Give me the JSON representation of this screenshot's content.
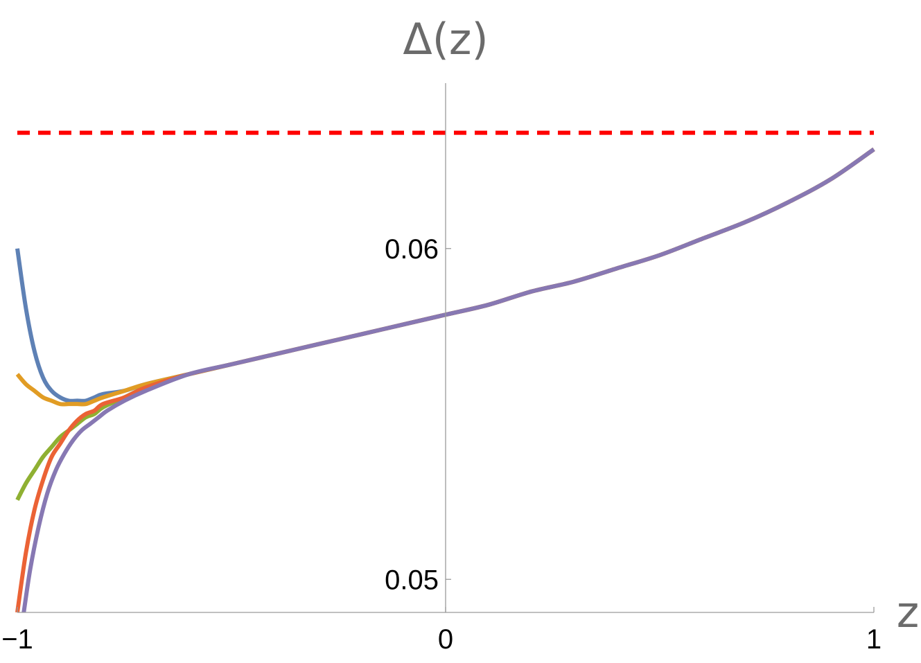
{
  "chart_data": {
    "type": "line",
    "title": "",
    "xlabel": "z",
    "ylabel": "Δ(z)",
    "xlim": [
      -1,
      1
    ],
    "ylim": [
      0.049,
      0.065
    ],
    "x_ticks": [
      "−1",
      "0",
      "1"
    ],
    "x_tick_values": [
      -1,
      0,
      1
    ],
    "y_ticks": [
      "0.05",
      "0.06"
    ],
    "y_tick_values": [
      0.05,
      0.06
    ],
    "grid": false,
    "legend": "none",
    "reference_line": {
      "y": 0.0635,
      "style": "dashed",
      "color": "#ff0000"
    },
    "series": [
      {
        "color": "#5e81b5",
        "points": [
          [
            -1,
            0.06
          ],
          [
            -0.98,
            0.0582
          ],
          [
            -0.96,
            0.0569
          ],
          [
            -0.94,
            0.0561
          ],
          [
            -0.92,
            0.0557
          ],
          [
            -0.9,
            0.0555
          ],
          [
            -0.88,
            0.0554
          ],
          [
            -0.86,
            0.0554
          ],
          [
            -0.84,
            0.0554
          ],
          [
            -0.82,
            0.0555
          ],
          [
            -0.8,
            0.0556
          ],
          [
            -0.75,
            0.0557
          ],
          [
            -0.7,
            0.0559
          ],
          [
            -0.6,
            0.0562
          ],
          [
            -0.5,
            0.0565
          ],
          [
            -0.4,
            0.0568
          ],
          [
            -0.3,
            0.0571
          ],
          [
            -0.2,
            0.0574
          ],
          [
            -0.1,
            0.0577
          ],
          [
            0,
            0.058
          ],
          [
            0.1,
            0.0583
          ],
          [
            0.2,
            0.0587
          ],
          [
            0.3,
            0.059
          ],
          [
            0.4,
            0.0594
          ],
          [
            0.5,
            0.0598
          ],
          [
            0.6,
            0.0603
          ],
          [
            0.7,
            0.0608
          ],
          [
            0.8,
            0.0614
          ],
          [
            0.9,
            0.0621
          ],
          [
            1,
            0.063
          ]
        ]
      },
      {
        "color": "#e19c24",
        "points": [
          [
            -1,
            0.0562
          ],
          [
            -0.98,
            0.0559
          ],
          [
            -0.96,
            0.0557
          ],
          [
            -0.94,
            0.0555
          ],
          [
            -0.92,
            0.0554
          ],
          [
            -0.9,
            0.0553
          ],
          [
            -0.88,
            0.0553
          ],
          [
            -0.86,
            0.0553
          ],
          [
            -0.84,
            0.0553
          ],
          [
            -0.82,
            0.0554
          ],
          [
            -0.8,
            0.0555
          ],
          [
            -0.75,
            0.0557
          ],
          [
            -0.7,
            0.0559
          ],
          [
            -0.6,
            0.0562
          ],
          [
            -0.5,
            0.0565
          ],
          [
            -0.4,
            0.0568
          ],
          [
            -0.3,
            0.0571
          ],
          [
            -0.2,
            0.0574
          ],
          [
            -0.1,
            0.0577
          ],
          [
            0,
            0.058
          ],
          [
            0.1,
            0.0583
          ],
          [
            0.2,
            0.0587
          ],
          [
            0.3,
            0.059
          ],
          [
            0.4,
            0.0594
          ],
          [
            0.5,
            0.0598
          ],
          [
            0.6,
            0.0603
          ],
          [
            0.7,
            0.0608
          ],
          [
            0.8,
            0.0614
          ],
          [
            0.9,
            0.0621
          ],
          [
            1,
            0.063
          ]
        ]
      },
      {
        "color": "#8fb032",
        "points": [
          [
            -1,
            0.0524
          ],
          [
            -0.98,
            0.0529
          ],
          [
            -0.96,
            0.0533
          ],
          [
            -0.94,
            0.0537
          ],
          [
            -0.92,
            0.054
          ],
          [
            -0.9,
            0.0543
          ],
          [
            -0.88,
            0.0545
          ],
          [
            -0.86,
            0.0547
          ],
          [
            -0.84,
            0.0549
          ],
          [
            -0.82,
            0.055
          ],
          [
            -0.8,
            0.0552
          ],
          [
            -0.75,
            0.0555
          ],
          [
            -0.7,
            0.0558
          ],
          [
            -0.6,
            0.0562
          ],
          [
            -0.5,
            0.0565
          ],
          [
            -0.4,
            0.0568
          ],
          [
            -0.3,
            0.0571
          ],
          [
            -0.2,
            0.0574
          ],
          [
            -0.1,
            0.0577
          ],
          [
            0,
            0.058
          ],
          [
            0.1,
            0.0583
          ],
          [
            0.2,
            0.0587
          ],
          [
            0.3,
            0.059
          ],
          [
            0.4,
            0.0594
          ],
          [
            0.5,
            0.0598
          ],
          [
            0.6,
            0.0603
          ],
          [
            0.7,
            0.0608
          ],
          [
            0.8,
            0.0614
          ],
          [
            0.9,
            0.0621
          ],
          [
            1,
            0.063
          ]
        ]
      },
      {
        "color": "#eb6235",
        "points": [
          [
            -1,
            0.049
          ],
          [
            -0.98,
            0.0508
          ],
          [
            -0.96,
            0.0521
          ],
          [
            -0.94,
            0.053
          ],
          [
            -0.92,
            0.0537
          ],
          [
            -0.9,
            0.0541
          ],
          [
            -0.88,
            0.0545
          ],
          [
            -0.86,
            0.0548
          ],
          [
            -0.84,
            0.055
          ],
          [
            -0.82,
            0.0551
          ],
          [
            -0.8,
            0.0553
          ],
          [
            -0.75,
            0.0555
          ],
          [
            -0.7,
            0.0558
          ],
          [
            -0.6,
            0.0562
          ],
          [
            -0.5,
            0.0565
          ],
          [
            -0.4,
            0.0568
          ],
          [
            -0.3,
            0.0571
          ],
          [
            -0.2,
            0.0574
          ],
          [
            -0.1,
            0.0577
          ],
          [
            0,
            0.058
          ],
          [
            0.1,
            0.0583
          ],
          [
            0.2,
            0.0587
          ],
          [
            0.3,
            0.059
          ],
          [
            0.4,
            0.0594
          ],
          [
            0.5,
            0.0598
          ],
          [
            0.6,
            0.0603
          ],
          [
            0.7,
            0.0608
          ],
          [
            0.8,
            0.0614
          ],
          [
            0.9,
            0.0621
          ],
          [
            1,
            0.063
          ]
        ]
      },
      {
        "color": "#8778b3",
        "points": [
          [
            -0.985,
            0.049
          ],
          [
            -0.97,
            0.0503
          ],
          [
            -0.95,
            0.0516
          ],
          [
            -0.93,
            0.0526
          ],
          [
            -0.91,
            0.0533
          ],
          [
            -0.89,
            0.0538
          ],
          [
            -0.87,
            0.0542
          ],
          [
            -0.85,
            0.0545
          ],
          [
            -0.83,
            0.0547
          ],
          [
            -0.81,
            0.0549
          ],
          [
            -0.79,
            0.0551
          ],
          [
            -0.75,
            0.0554
          ],
          [
            -0.7,
            0.0557
          ],
          [
            -0.6,
            0.0562
          ],
          [
            -0.5,
            0.0565
          ],
          [
            -0.4,
            0.0568
          ],
          [
            -0.3,
            0.0571
          ],
          [
            -0.2,
            0.0574
          ],
          [
            -0.1,
            0.0577
          ],
          [
            0,
            0.058
          ],
          [
            0.1,
            0.0583
          ],
          [
            0.2,
            0.0587
          ],
          [
            0.3,
            0.059
          ],
          [
            0.4,
            0.0594
          ],
          [
            0.5,
            0.0598
          ],
          [
            0.6,
            0.0603
          ],
          [
            0.7,
            0.0608
          ],
          [
            0.8,
            0.0614
          ],
          [
            0.9,
            0.0621
          ],
          [
            1,
            0.063
          ]
        ]
      }
    ]
  }
}
